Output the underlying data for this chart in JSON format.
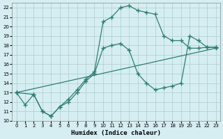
{
  "xlabel": "Humidex (Indice chaleur)",
  "bg_color": "#d6eef2",
  "grid_color": "#aacccc",
  "line_color": "#2e7d72",
  "xlim": [
    -0.5,
    23.5
  ],
  "ylim": [
    10,
    22.5
  ],
  "xticks": [
    0,
    1,
    2,
    3,
    4,
    5,
    6,
    7,
    8,
    9,
    10,
    11,
    12,
    13,
    14,
    15,
    16,
    17,
    18,
    19,
    20,
    21,
    22,
    23
  ],
  "yticks": [
    10,
    11,
    12,
    13,
    14,
    15,
    16,
    17,
    18,
    19,
    20,
    21,
    22
  ],
  "line1_x": [
    0,
    1,
    2,
    3,
    4,
    5,
    6,
    7,
    8,
    9,
    10,
    11,
    12,
    13,
    14,
    15,
    16,
    17,
    18,
    19,
    20,
    21,
    22,
    23
  ],
  "line1_y": [
    13,
    11.7,
    12.8,
    11.0,
    10.5,
    11.5,
    12.3,
    13.3,
    14.4,
    15.2,
    20.5,
    21.0,
    22.0,
    22.2,
    21.7,
    21.5,
    21.3,
    19.0,
    18.5,
    18.5,
    17.7,
    17.7,
    17.8,
    17.8
  ],
  "line2_x": [
    0,
    2,
    3,
    4,
    5,
    6,
    7,
    8,
    9,
    10,
    11,
    12,
    13,
    14,
    15,
    16,
    17,
    18,
    19,
    20,
    21,
    22,
    23
  ],
  "line2_y": [
    13,
    12.8,
    11.0,
    10.5,
    11.5,
    12.0,
    13.0,
    14.2,
    15.0,
    17.7,
    18.0,
    18.2,
    17.5,
    15.0,
    14.0,
    13.3,
    13.5,
    13.7,
    14.0,
    19.0,
    18.5,
    17.8,
    17.8
  ],
  "line3_x": [
    0,
    23
  ],
  "line3_y": [
    13,
    17.7
  ],
  "marker": "+"
}
